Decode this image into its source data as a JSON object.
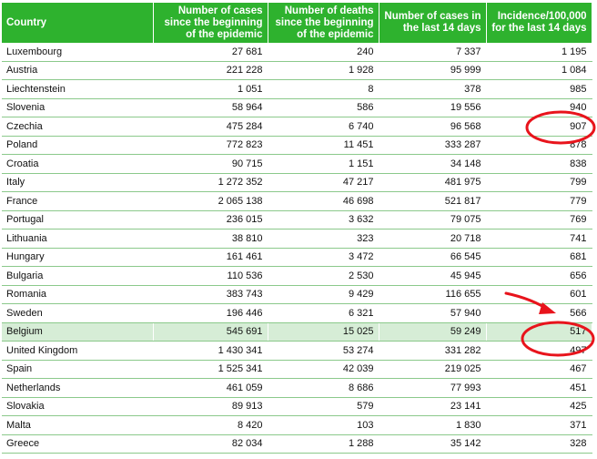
{
  "table": {
    "headers": [
      "Country",
      "Number of cases since the beginning of the epidemic",
      "Number of deaths since the beginning of the epidemic",
      "Number of cases in the last 14 days",
      "Incidence/100,000 for the last 14 days"
    ],
    "rows": [
      [
        "Luxembourg",
        "27 681",
        "240",
        "7 337",
        "1 195"
      ],
      [
        "Austria",
        "221 228",
        "1 928",
        "95 999",
        "1 084"
      ],
      [
        "Liechtenstein",
        "1 051",
        "8",
        "378",
        "985"
      ],
      [
        "Slovenia",
        "58 964",
        "586",
        "19 556",
        "940"
      ],
      [
        "Czechia",
        "475 284",
        "6 740",
        "96 568",
        "907"
      ],
      [
        "Poland",
        "772 823",
        "11 451",
        "333 287",
        "878"
      ],
      [
        "Croatia",
        "90 715",
        "1 151",
        "34 148",
        "838"
      ],
      [
        "Italy",
        "1 272 352",
        "47 217",
        "481 975",
        "799"
      ],
      [
        "France",
        "2 065 138",
        "46 698",
        "521 817",
        "779"
      ],
      [
        "Portugal",
        "236 015",
        "3 632",
        "79 075",
        "769"
      ],
      [
        "Lithuania",
        "38 810",
        "323",
        "20 718",
        "741"
      ],
      [
        "Hungary",
        "161 461",
        "3 472",
        "66 545",
        "681"
      ],
      [
        "Bulgaria",
        "110 536",
        "2 530",
        "45 945",
        "656"
      ],
      [
        "Romania",
        "383 743",
        "9 429",
        "116 655",
        "601"
      ],
      [
        "Sweden",
        "196 446",
        "6 321",
        "57 940",
        "566"
      ],
      [
        "Belgium",
        "545 691",
        "15 025",
        "59 249",
        "517"
      ],
      [
        "United Kingdom",
        "1 430 341",
        "53 274",
        "331 282",
        "497"
      ],
      [
        "Spain",
        "1 525 341",
        "42 039",
        "219 025",
        "467"
      ],
      [
        "Netherlands",
        "461 059",
        "8 686",
        "77 993",
        "451"
      ],
      [
        "Slovakia",
        "89 913",
        "579",
        "23 141",
        "425"
      ],
      [
        "Malta",
        "8 420",
        "103",
        "1 830",
        "371"
      ],
      [
        "Greece",
        "82 034",
        "1 288",
        "35 142",
        "328"
      ]
    ],
    "highlighted_country": "Belgium"
  },
  "annotations": {
    "circle_color": "#e8141c",
    "arrow_color": "#e8141c",
    "circled_values": [
      "907",
      "517"
    ]
  },
  "colors": {
    "header_bg": "#2eb22e",
    "header_text": "#ffffff",
    "row_border": "#8bc98b",
    "highlight_bg": "#d6edd6"
  }
}
